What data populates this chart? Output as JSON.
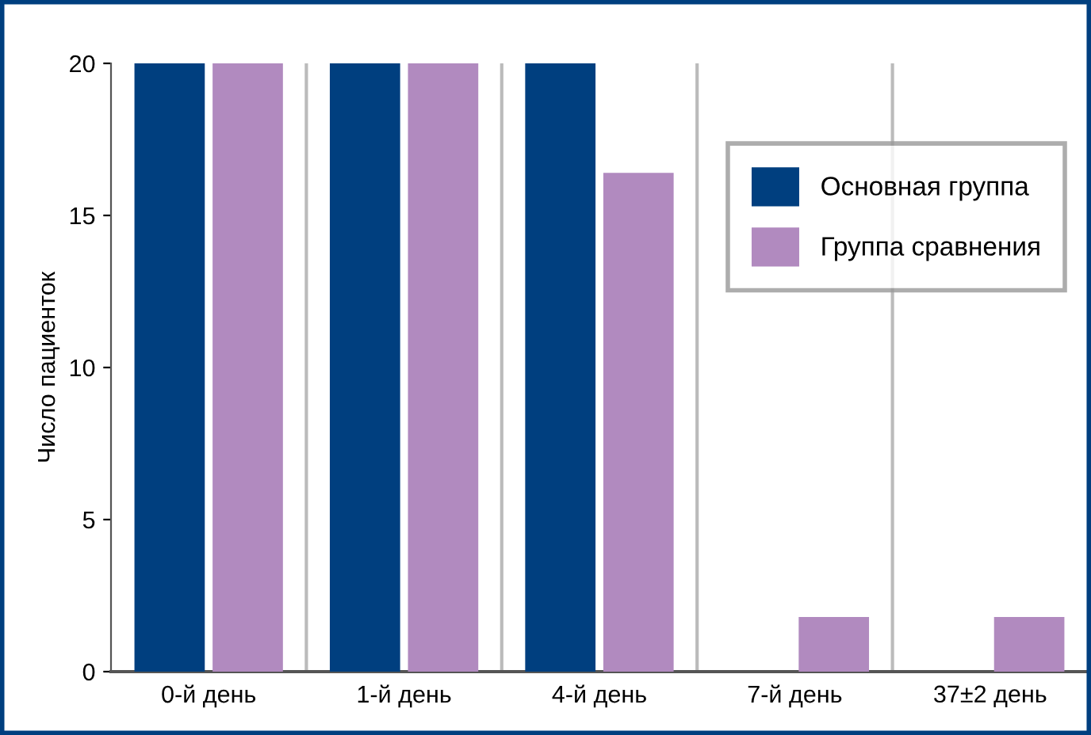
{
  "chart_data": {
    "type": "bar",
    "ylabel": "Число пациенток",
    "categories": [
      "0-й день",
      "1-й день",
      "4-й день",
      "7-й день",
      "37±2 день"
    ],
    "series": [
      {
        "name": "Основная группа",
        "color": "#003f7f",
        "values": [
          20,
          20,
          20,
          0,
          0
        ]
      },
      {
        "name": "Группа сравнения",
        "color": "#b18abf",
        "values": [
          20,
          20,
          16.4,
          1.8,
          1.8
        ]
      }
    ],
    "ylim": [
      0,
      20
    ],
    "yticks": [
      0,
      5,
      10,
      15,
      20
    ],
    "grid": "x",
    "legend": "top right"
  }
}
